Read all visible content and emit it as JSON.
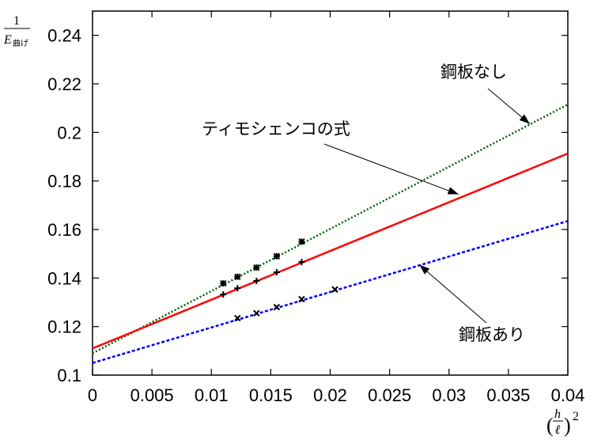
{
  "chart_data": {
    "type": "line",
    "title": "",
    "ylabel": {
      "numerator": "1",
      "denominator_var": "E",
      "denominator_sub": "曲げ"
    },
    "xlabel": {
      "numerator": "h",
      "denominator": "ℓ",
      "power": "2"
    },
    "xlim": [
      0,
      0.04
    ],
    "ylim": [
      0.1,
      0.25
    ],
    "x_ticks": [
      "0",
      "0.005",
      "0.01",
      "0.015",
      "0.02",
      "0.025",
      "0.03",
      "0.035",
      "0.04"
    ],
    "y_ticks": [
      "0.1",
      "0.12",
      "0.14",
      "0.16",
      "0.18",
      "0.2",
      "0.22",
      "0.24"
    ],
    "grid": false,
    "series": [
      {
        "name": "鋼板なし",
        "color": "#006400",
        "style": "dotted",
        "line": {
          "x": [
            0,
            0.04
          ],
          "y": [
            0.109,
            0.2115
          ]
        },
        "points": [
          {
            "x": 0.011,
            "y": 0.1378
          },
          {
            "x": 0.0122,
            "y": 0.1405
          },
          {
            "x": 0.0138,
            "y": 0.1443
          },
          {
            "x": 0.0155,
            "y": 0.149
          },
          {
            "x": 0.0176,
            "y": 0.155
          }
        ]
      },
      {
        "name": "ティモシェンコの式",
        "color": "#ff0000",
        "style": "solid",
        "line": {
          "x": [
            0,
            0.04
          ],
          "y": [
            0.111,
            0.1913
          ]
        },
        "points": [
          {
            "x": 0.011,
            "y": 0.1332
          },
          {
            "x": 0.0122,
            "y": 0.1358
          },
          {
            "x": 0.0138,
            "y": 0.1388
          },
          {
            "x": 0.0155,
            "y": 0.1424
          },
          {
            "x": 0.0176,
            "y": 0.1466
          }
        ]
      },
      {
        "name": "鋼板あり",
        "color": "#0000ff",
        "style": "dashed",
        "line": {
          "x": [
            0,
            0.04
          ],
          "y": [
            0.105,
            0.1635
          ]
        },
        "points": [
          {
            "x": 0.0122,
            "y": 0.1235
          },
          {
            "x": 0.0138,
            "y": 0.1255
          },
          {
            "x": 0.0155,
            "y": 0.128
          },
          {
            "x": 0.0176,
            "y": 0.1313
          },
          {
            "x": 0.0204,
            "y": 0.1353
          }
        ]
      }
    ],
    "annotations": [
      {
        "text": "鋼板なし",
        "arrow_to": {
          "x": 0.0368,
          "y": 0.2035
        }
      },
      {
        "text": "ティモシェンコの式",
        "arrow_to": {
          "x": 0.0308,
          "y": 0.1745
        }
      },
      {
        "text": "鋼板あり",
        "arrow_to": {
          "x": 0.0275,
          "y": 0.1455
        }
      }
    ]
  }
}
